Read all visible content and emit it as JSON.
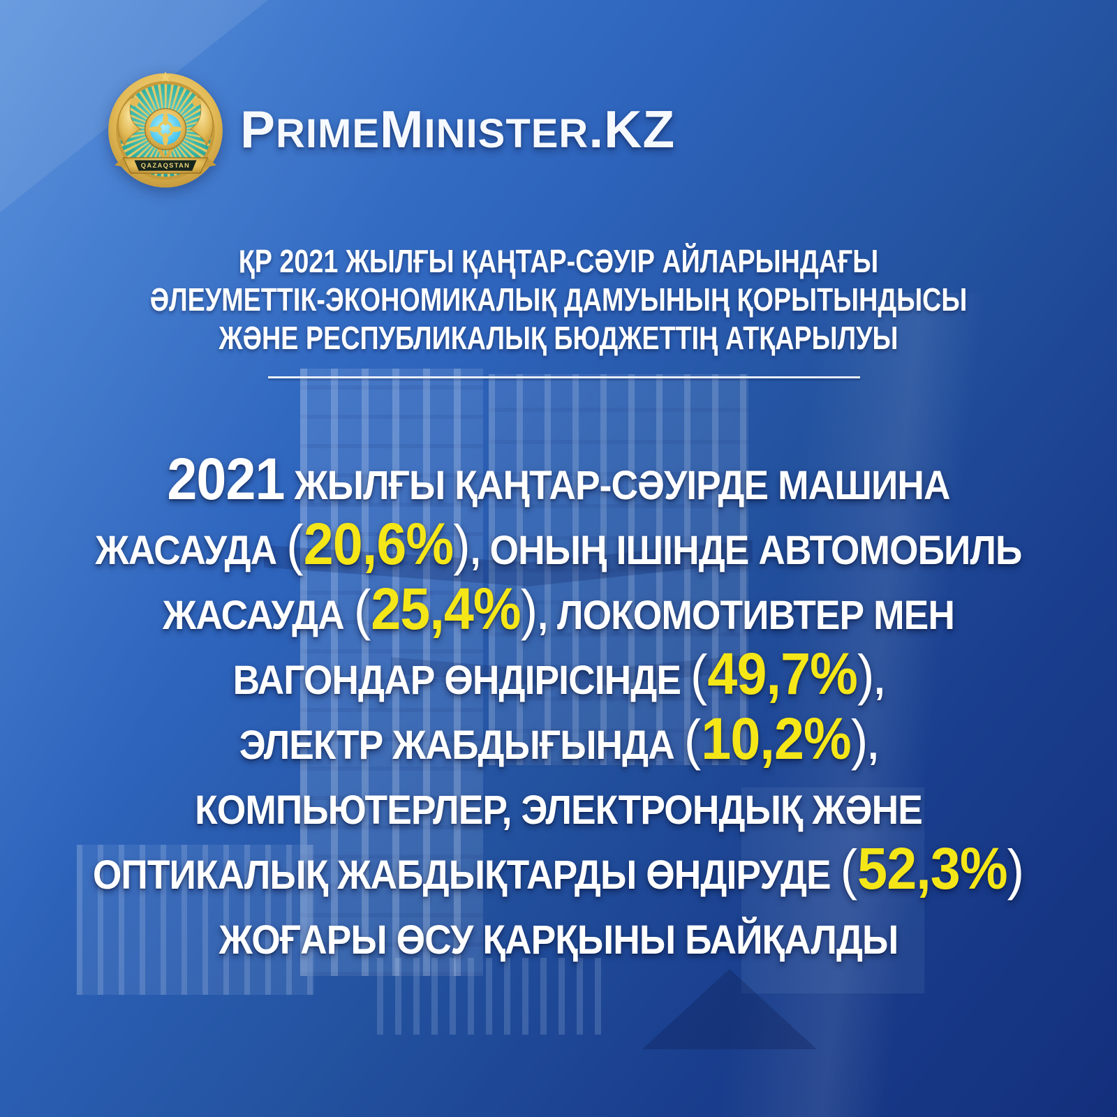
{
  "brand": {
    "name": "PrimeMinister.KZ",
    "segments": [
      {
        "t": "P",
        "big": true
      },
      {
        "t": "RIME",
        "big": false
      },
      {
        "t": "M",
        "big": true
      },
      {
        "t": "INISTER",
        "big": false
      },
      {
        "t": ".KZ",
        "big": true
      }
    ]
  },
  "emblem": {
    "description": "state-emblem-of-kazakhstan",
    "banner_text": "QAZAQSTAN",
    "colors": {
      "gold": "#E3BB57",
      "teal": "#35B2A4",
      "center_blue": "#45C8E8"
    }
  },
  "subtitle": {
    "lines": [
      "ҚР 2021 ЖЫЛҒЫ ҚАҢТАР-СӘУІР АЙЛАРЫНДАҒЫ",
      "ӘЛЕУМЕТТІК-ЭКОНОМИКАЛЫҚ ДАМУЫНЫҢ ҚОРЫТЫНДЫСЫ",
      "ЖӘНЕ РЕСПУБЛИКАЛЫҚ БЮДЖЕТТІҢ АТҚАРЫЛУЫ"
    ]
  },
  "main_text": {
    "lines": [
      [
        {
          "t": "2021",
          "c": "n"
        },
        {
          "t": " ЖЫЛҒЫ ҚАҢТАР-СӘУІРДЕ МАШИНА",
          "c": "w"
        }
      ],
      [
        {
          "t": "ЖАСАУДА ",
          "c": "w"
        },
        {
          "t": "(",
          "c": "p"
        },
        {
          "t": "20,6%",
          "c": "y"
        },
        {
          "t": ")",
          "c": "p"
        },
        {
          "t": ", ОНЫҢ ІШІНДЕ АВТОМОБИЛЬ",
          "c": "w"
        }
      ],
      [
        {
          "t": "ЖАСАУДА ",
          "c": "w"
        },
        {
          "t": "(",
          "c": "p"
        },
        {
          "t": "25,4%",
          "c": "y"
        },
        {
          "t": ")",
          "c": "p"
        },
        {
          "t": ", ЛОКОМОТИВТЕР МЕН",
          "c": "w"
        }
      ],
      [
        {
          "t": "ВАГОНДАР ӨНДІРІСІНДЕ ",
          "c": "w"
        },
        {
          "t": "(",
          "c": "p"
        },
        {
          "t": "49,7%",
          "c": "y"
        },
        {
          "t": ")",
          "c": "p"
        },
        {
          "t": ",",
          "c": "w"
        }
      ],
      [
        {
          "t": "ЭЛЕКТР ЖАБДЫҒЫНДА ",
          "c": "w"
        },
        {
          "t": "(",
          "c": "p"
        },
        {
          "t": "10,2%",
          "c": "y"
        },
        {
          "t": ")",
          "c": "p"
        },
        {
          "t": ",",
          "c": "w"
        }
      ],
      [
        {
          "t": "КОМПЬЮТЕРЛЕР, ЭЛЕКТРОНДЫҚ ЖӘНЕ",
          "c": "w"
        }
      ],
      [
        {
          "t": "ОПТИКАЛЫҚ ЖАБДЫҚТАРДЫ ӨНДІРУДЕ ",
          "c": "w"
        },
        {
          "t": "(",
          "c": "p"
        },
        {
          "t": "52,3%",
          "c": "y"
        },
        {
          "t": ")",
          "c": "p"
        }
      ],
      [
        {
          "t": "ЖОҒАРЫ ӨСУ ҚАРҚЫНЫ БАЙҚАЛДЫ",
          "c": "w"
        }
      ]
    ]
  },
  "colors": {
    "accent_yellow": "#F5E618",
    "text_white": "#FFFFFF",
    "background_top_left": "#4F8ADA",
    "background_bottom_right": "#132F7C"
  }
}
